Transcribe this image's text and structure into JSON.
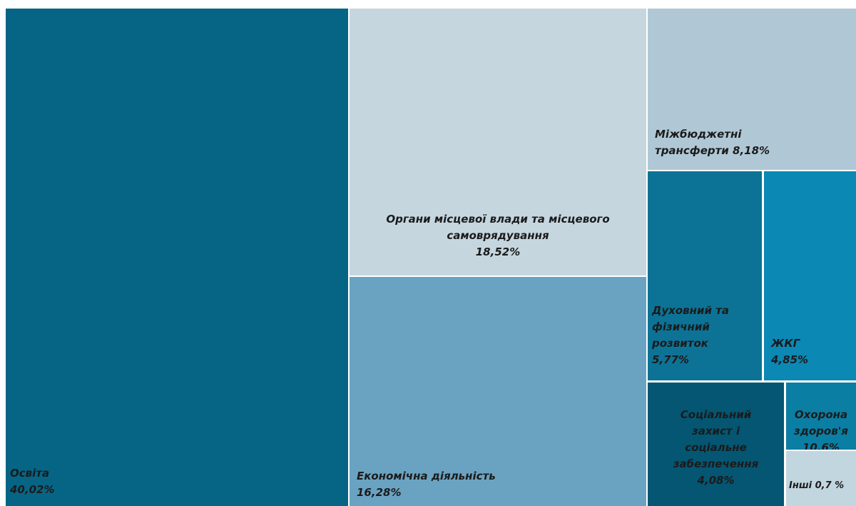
{
  "chart_data": {
    "type": "treemap",
    "items": [
      {
        "name": "Освіта",
        "value": 40.02,
        "value_label": "40,02%",
        "color": "#066585"
      },
      {
        "name": "Органи місцевої влади та місцевого самоврядування",
        "value": 18.52,
        "value_label": "18,52%",
        "color": "#c5d6df"
      },
      {
        "name": "Економічна діяльність",
        "value": 16.28,
        "value_label": "16,28%",
        "color": "#6aa3c1"
      },
      {
        "name": "Міжбюджетні трансферти",
        "value": 8.18,
        "value_label": "8,18%",
        "color": "#b0c8d6"
      },
      {
        "name": "Духовний та фізичний розвиток",
        "value": 5.77,
        "value_label": "5,77%",
        "color": "#0c7396"
      },
      {
        "name": "ЖКГ",
        "value": 4.85,
        "value_label": "4,85%",
        "color": "#0b88b4"
      },
      {
        "name": "Соціальний захист і соціальне забезпечення",
        "value": 4.08,
        "value_label": "4,08%",
        "color": "#045672"
      },
      {
        "name": "Охорона здоров'я",
        "value": 10.6,
        "value_label": "10,6%",
        "color": "#0b7ea3"
      },
      {
        "name": "Інші",
        "value": 0.7,
        "value_label": "0,7 %",
        "color": "#c2d6e0"
      }
    ]
  },
  "labels": {
    "osvita": "Освіта\n40,02%",
    "organy": "Органи місцевої влади та місцевого\nсамоврядування\n18,52%",
    "ekonomichna": "Економічна діяльність\n16,28%",
    "mizhbiudzhetni": "Міжбюджетні\nтрансферти 8,18%",
    "dukhovnyi": "Духовний та\nфізичний\nрозвиток\n5,77%",
    "zhkg": "ЖКГ\n4,85%",
    "sotsialnyi": "Соціальний\nзахист і\nсоціальне\nзабезпечення\n4,08%",
    "okhorona": "Охорона\nздоров'я\n10,6%",
    "inshi": "Інші 0,7 %"
  }
}
